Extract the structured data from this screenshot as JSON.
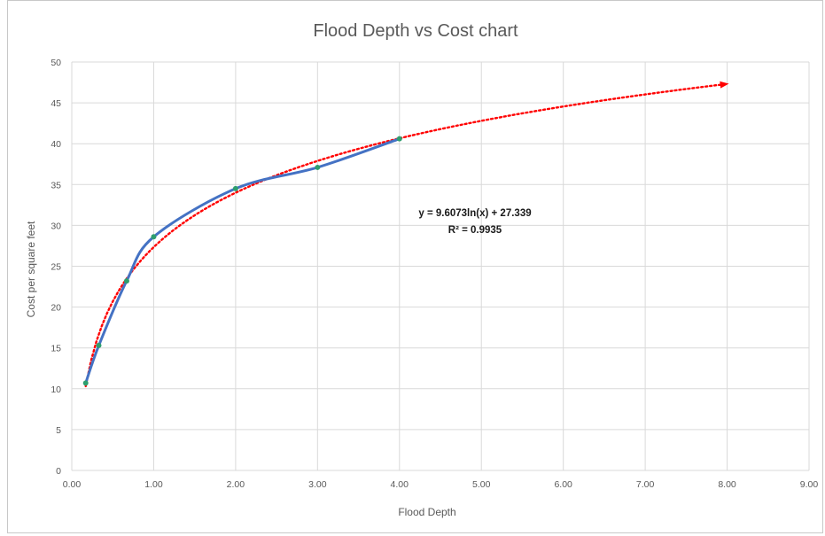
{
  "chart_data": {
    "type": "line",
    "title": "Flood Depth vs Cost chart",
    "xlabel": "Flood Depth",
    "ylabel": "Cost per square feet",
    "xlim": [
      0,
      9
    ],
    "ylim": [
      0,
      50
    ],
    "x_ticks": [
      "0.00",
      "1.00",
      "2.00",
      "3.00",
      "4.00",
      "5.00",
      "6.00",
      "7.00",
      "8.00",
      "9.00"
    ],
    "y_ticks": [
      "0",
      "5",
      "10",
      "15",
      "20",
      "25",
      "30",
      "35",
      "40",
      "45",
      "50"
    ],
    "grid": true,
    "series": [
      {
        "type": "line",
        "smooth": true,
        "color": "#4472c4",
        "marker_color": "#2e9e6e",
        "x": [
          0.17,
          0.33,
          0.67,
          1.0,
          2.0,
          3.0,
          4.0
        ],
        "y": [
          10.7,
          15.3,
          23.2,
          28.6,
          34.5,
          37.1,
          40.6
        ]
      }
    ],
    "trendline": {
      "type": "logarithmic",
      "color": "#ff0000",
      "style": "dotted",
      "arrow_end": true,
      "a": 9.6073,
      "b": 27.339,
      "x_range": [
        0.17,
        8.0
      ],
      "equation_label": "y = 9.6073ln(x) + 27.339",
      "r2_label": "R² = 0.9935"
    }
  }
}
